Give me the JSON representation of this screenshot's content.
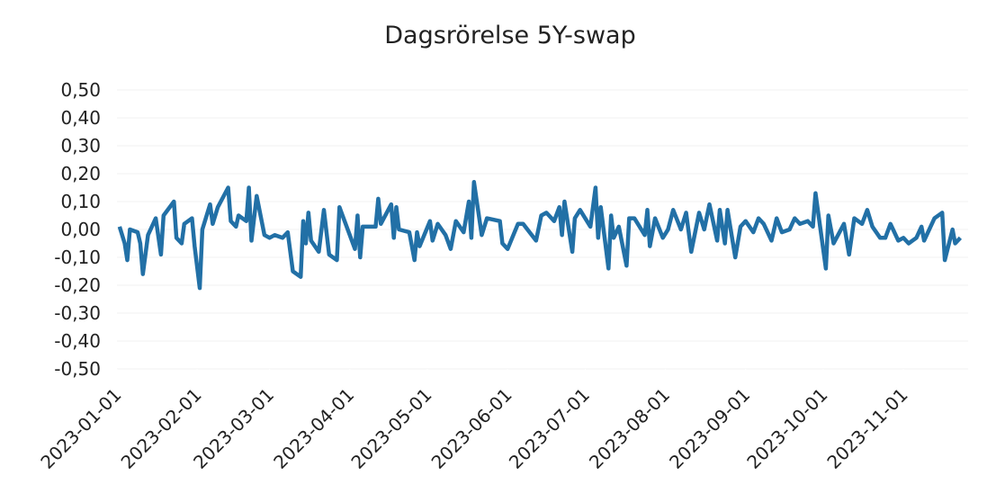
{
  "chart_data": {
    "type": "line",
    "title": "Dagsrörelse 5Y-swap",
    "x": [
      "2023-01-02",
      "2023-01-04",
      "2023-01-05",
      "2023-01-06",
      "2023-01-09",
      "2023-01-10",
      "2023-01-11",
      "2023-01-13",
      "2023-01-16",
      "2023-01-18",
      "2023-01-19",
      "2023-01-23",
      "2023-01-24",
      "2023-01-26",
      "2023-01-27",
      "2023-01-30",
      "2023-01-31",
      "2023-02-02",
      "2023-02-03",
      "2023-02-06",
      "2023-02-07",
      "2023-02-09",
      "2023-02-13",
      "2023-02-14",
      "2023-02-16",
      "2023-02-17",
      "2023-02-20",
      "2023-02-21",
      "2023-02-22",
      "2023-02-24",
      "2023-02-27",
      "2023-03-01",
      "2023-03-03",
      "2023-03-06",
      "2023-03-08",
      "2023-03-10",
      "2023-03-13",
      "2023-03-14",
      "2023-03-15",
      "2023-03-16",
      "2023-03-17",
      "2023-03-20",
      "2023-03-22",
      "2023-03-24",
      "2023-03-27",
      "2023-03-28",
      "2023-03-30",
      "2023-04-03",
      "2023-04-04",
      "2023-04-05",
      "2023-04-06",
      "2023-04-11",
      "2023-04-12",
      "2023-04-13",
      "2023-04-17",
      "2023-04-18",
      "2023-04-19",
      "2023-04-20",
      "2023-04-24",
      "2023-04-26",
      "2023-04-27",
      "2023-04-28",
      "2023-05-02",
      "2023-05-03",
      "2023-05-05",
      "2023-05-08",
      "2023-05-10",
      "2023-05-12",
      "2023-05-15",
      "2023-05-17",
      "2023-05-18",
      "2023-05-19",
      "2023-05-22",
      "2023-05-24",
      "2023-05-29",
      "2023-05-30",
      "2023-06-01",
      "2023-06-05",
      "2023-06-07",
      "2023-06-12",
      "2023-06-14",
      "2023-06-16",
      "2023-06-19",
      "2023-06-21",
      "2023-06-22",
      "2023-06-23",
      "2023-06-26",
      "2023-06-27",
      "2023-06-29",
      "2023-07-03",
      "2023-07-05",
      "2023-07-06",
      "2023-07-07",
      "2023-07-10",
      "2023-07-11",
      "2023-07-12",
      "2023-07-14",
      "2023-07-17",
      "2023-07-18",
      "2023-07-20",
      "2023-07-24",
      "2023-07-25",
      "2023-07-26",
      "2023-07-28",
      "2023-07-31",
      "2023-08-02",
      "2023-08-04",
      "2023-08-07",
      "2023-08-09",
      "2023-08-11",
      "2023-08-14",
      "2023-08-16",
      "2023-08-18",
      "2023-08-21",
      "2023-08-22",
      "2023-08-24",
      "2023-08-25",
      "2023-08-28",
      "2023-08-30",
      "2023-09-01",
      "2023-09-04",
      "2023-09-06",
      "2023-09-08",
      "2023-09-11",
      "2023-09-13",
      "2023-09-15",
      "2023-09-18",
      "2023-09-20",
      "2023-09-22",
      "2023-09-25",
      "2023-09-27",
      "2023-09-28",
      "2023-10-02",
      "2023-10-03",
      "2023-10-05",
      "2023-10-09",
      "2023-10-11",
      "2023-10-13",
      "2023-10-16",
      "2023-10-18",
      "2023-10-20",
      "2023-10-23",
      "2023-10-25",
      "2023-10-27",
      "2023-10-30",
      "2023-11-01",
      "2023-11-03",
      "2023-11-06",
      "2023-11-08",
      "2023-11-09",
      "2023-11-13",
      "2023-11-16",
      "2023-11-17",
      "2023-11-20",
      "2023-11-21",
      "2023-11-23"
    ],
    "series": [
      {
        "name": "5Y-swap",
        "color": "#2270a6",
        "values": [
          0.01,
          -0.05,
          -0.11,
          0.0,
          -0.01,
          -0.05,
          -0.16,
          -0.02,
          0.04,
          -0.09,
          0.05,
          0.1,
          -0.03,
          -0.05,
          0.02,
          0.04,
          -0.06,
          -0.21,
          0.0,
          0.09,
          0.02,
          0.08,
          0.15,
          0.03,
          0.01,
          0.05,
          0.03,
          0.15,
          -0.04,
          0.12,
          -0.02,
          -0.03,
          -0.02,
          -0.03,
          -0.01,
          -0.15,
          -0.17,
          0.03,
          -0.05,
          0.06,
          -0.04,
          -0.08,
          0.07,
          -0.09,
          -0.11,
          0.08,
          0.03,
          -0.07,
          0.05,
          -0.1,
          0.01,
          0.01,
          0.11,
          0.02,
          0.09,
          -0.03,
          0.08,
          0.0,
          -0.01,
          -0.11,
          -0.01,
          -0.06,
          0.03,
          -0.04,
          0.02,
          -0.02,
          -0.07,
          0.03,
          -0.01,
          0.1,
          -0.03,
          0.17,
          -0.02,
          0.04,
          0.03,
          -0.05,
          -0.07,
          0.02,
          0.02,
          -0.04,
          0.05,
          0.06,
          0.03,
          0.08,
          -0.02,
          0.1,
          -0.08,
          0.04,
          0.07,
          0.01,
          0.15,
          -0.03,
          0.08,
          -0.14,
          0.05,
          -0.03,
          0.01,
          -0.13,
          0.04,
          0.04,
          -0.02,
          0.07,
          -0.06,
          0.04,
          -0.03,
          0.0,
          0.07,
          0.0,
          0.06,
          -0.08,
          0.06,
          0.0,
          0.09,
          -0.04,
          0.07,
          -0.05,
          0.07,
          -0.1,
          0.01,
          0.03,
          -0.01,
          0.04,
          0.02,
          -0.04,
          0.04,
          -0.01,
          0.0,
          0.04,
          0.02,
          0.03,
          0.01,
          0.13,
          -0.14,
          0.05,
          -0.05,
          0.02,
          -0.09,
          0.04,
          0.02,
          0.07,
          0.01,
          -0.03,
          -0.03,
          0.02,
          -0.04,
          -0.03,
          -0.05,
          -0.03,
          0.01,
          -0.04,
          0.04,
          0.06,
          -0.11,
          0.0,
          -0.05,
          -0.03
        ]
      }
    ],
    "xlim": [
      "2023-01-01",
      "2023-11-26"
    ],
    "xticks": [
      "2023-01-01",
      "2023-02-01",
      "2023-03-01",
      "2023-04-01",
      "2023-05-01",
      "2023-06-01",
      "2023-07-01",
      "2023-08-01",
      "2023-09-01",
      "2023-10-01",
      "2023-11-01"
    ],
    "ylim": [
      -0.5,
      0.5
    ],
    "yticks": [
      {
        "value": 0.5,
        "label": "0,50"
      },
      {
        "value": 0.4,
        "label": "0,40"
      },
      {
        "value": 0.3,
        "label": "0,30"
      },
      {
        "value": 0.2,
        "label": "0,20"
      },
      {
        "value": 0.1,
        "label": "0,10"
      },
      {
        "value": 0,
        "label": "0,00"
      },
      {
        "value": -0.1,
        "label": "-0,10"
      },
      {
        "value": -0.2,
        "label": "-0,20"
      },
      {
        "value": -0.3,
        "label": "-0,30"
      },
      {
        "value": -0.4,
        "label": "-0,40"
      },
      {
        "value": -0.5,
        "label": "-0,50"
      }
    ],
    "grid": true
  }
}
